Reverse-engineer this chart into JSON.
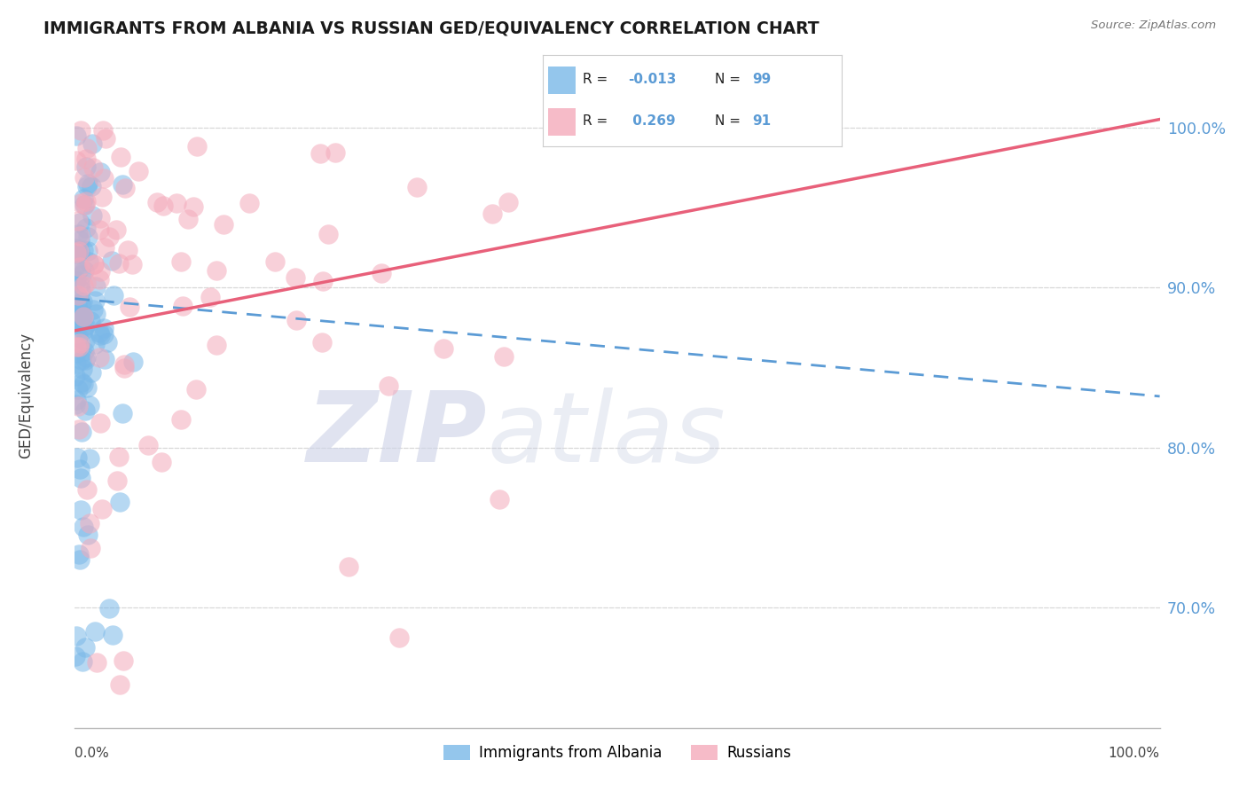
{
  "title": "IMMIGRANTS FROM ALBANIA VS RUSSIAN GED/EQUIVALENCY CORRELATION CHART",
  "source": "Source: ZipAtlas.com",
  "ylabel": "GED/Equivalency",
  "ytick_values": [
    0.7,
    0.8,
    0.9,
    1.0
  ],
  "xlim": [
    0.0,
    1.0
  ],
  "ylim": [
    0.625,
    1.04
  ],
  "legend": {
    "albania_label": "Immigrants from Albania",
    "russia_label": "Russians",
    "albania_R": "-0.013",
    "albania_N": "99",
    "russia_R": "0.269",
    "russia_N": "91"
  },
  "albania_color": "#7AB8E8",
  "russia_color": "#F4AABB",
  "albania_trend_color": "#5B9BD5",
  "russia_trend_color": "#E8607A",
  "background_color": "#ffffff",
  "grid_color": "#d8d8d8",
  "albania_trend_start_y": 0.893,
  "albania_trend_end_y": 0.832,
  "russia_trend_start_y": 0.873,
  "russia_trend_end_y": 1.005
}
